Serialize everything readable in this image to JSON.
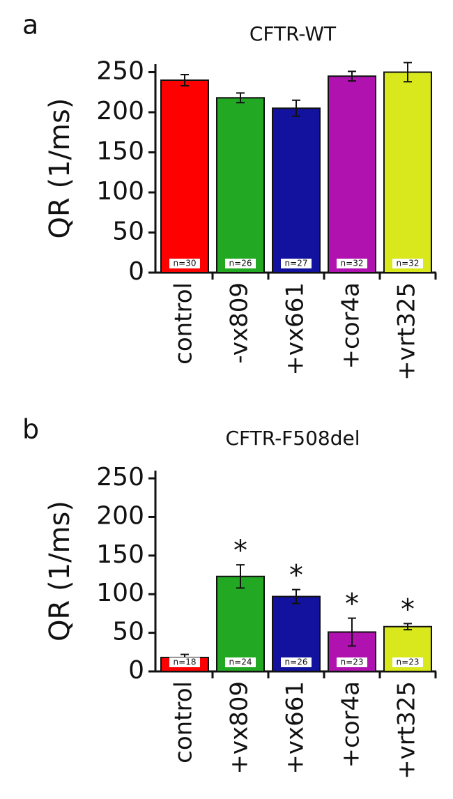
{
  "chart_data": [
    {
      "type": "bar",
      "panel": "a",
      "title": "CFTR-WT",
      "y_label": "QR (1/ms)",
      "categories": [
        "control",
        "-vx809",
        "+vx661",
        "+cor4a",
        "+vrt325"
      ],
      "values": [
        240,
        218,
        205,
        245,
        250
      ],
      "errors": [
        7,
        6,
        10,
        6,
        12
      ],
      "colors": [
        "#ff0000",
        "#22a822",
        "#12129e",
        "#b012b0",
        "#d8e81c"
      ],
      "n_labels": [
        "n=30",
        "n=26",
        "n=27",
        "n=32",
        "n=32"
      ],
      "annotations": [
        null,
        null,
        null,
        null,
        null
      ],
      "ylim": [
        0,
        260
      ],
      "yticks": [
        0,
        50,
        100,
        150,
        200,
        250
      ]
    },
    {
      "type": "bar",
      "panel": "b",
      "title": "CFTR-F508del",
      "y_label": "QR (1/ms)",
      "categories": [
        "control",
        "+vx809",
        "+vx661",
        "+cor4a",
        "+vrt325"
      ],
      "values": [
        18,
        123,
        97,
        51,
        58
      ],
      "errors": [
        4,
        15,
        9,
        18,
        4
      ],
      "colors": [
        "#ff0000",
        "#22a822",
        "#12129e",
        "#b012b0",
        "#d8e81c"
      ],
      "n_labels": [
        "n=18",
        "n=24",
        "n=26",
        "n=23",
        "n=23"
      ],
      "annotations": [
        null,
        "*",
        "*",
        "*",
        "*"
      ],
      "ylim": [
        0,
        260
      ],
      "yticks": [
        0,
        50,
        100,
        150,
        200,
        250
      ]
    }
  ]
}
